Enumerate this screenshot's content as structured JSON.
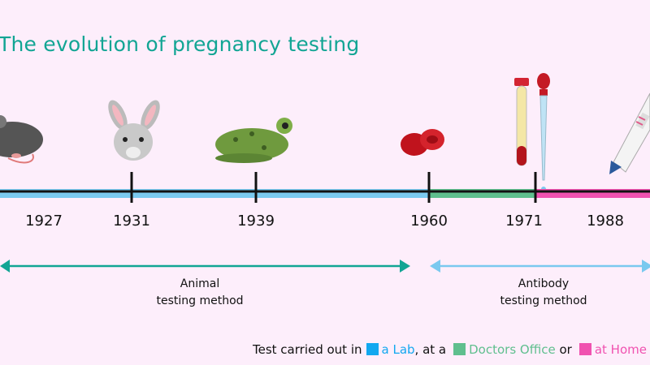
{
  "title": "The evolution of pregnancy testing",
  "timeline": {
    "years": [
      "1927",
      "1931",
      "1939",
      "1960",
      "1971",
      "1988"
    ],
    "icons": [
      "mouse-icon",
      "rabbit-icon",
      "frog-icon",
      "blood-cells-icon",
      "test-tube-dropper-icon",
      "pregnancy-test-icon"
    ],
    "segments": [
      {
        "location": "Lab",
        "color": "#7ac9ef"
      },
      {
        "location": "Doctors Office",
        "color": "#5fbf8e"
      },
      {
        "location": "Home",
        "color": "#f052b0"
      }
    ]
  },
  "periods": [
    {
      "label_line1": "Animal",
      "label_line2": "testing method",
      "color": "#12a594"
    },
    {
      "label_line1": "Antibody",
      "label_line2": "testing method",
      "color": "#7ac9ef"
    }
  ],
  "legend": {
    "prefix": "Test carried out in",
    "lab": "a Lab",
    "sep1": ", at a",
    "office": "Doctors Office",
    "sep2": "or",
    "home": "at Home",
    "colors": {
      "lab": "#12a8f0",
      "office": "#5fbf8e",
      "home": "#f052b0"
    }
  }
}
